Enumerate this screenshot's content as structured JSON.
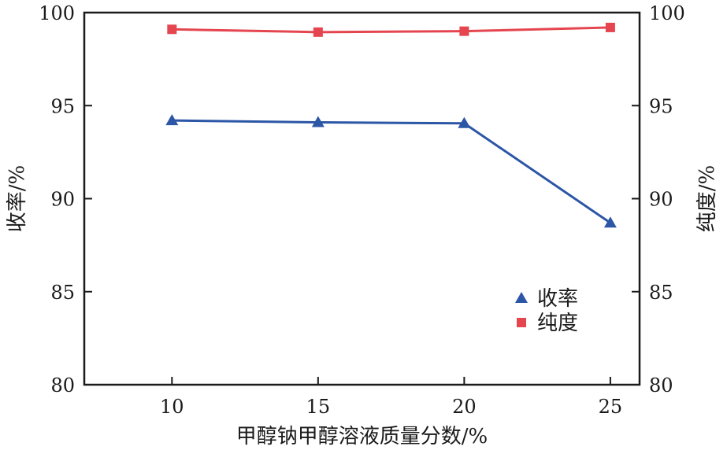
{
  "chart_data": {
    "type": "line",
    "x": [
      10,
      15,
      20,
      25
    ],
    "xticks": [
      10,
      15,
      20,
      25
    ],
    "xlabel": "甲醇钠甲醇溶液质量分数/%",
    "ylabel_left": "收率/%",
    "ylabel_right": "纯度/%",
    "ylim_left": [
      80,
      100
    ],
    "ylim_right": [
      80,
      100
    ],
    "yticks": [
      80,
      85,
      90,
      95,
      100
    ],
    "grid": false,
    "legend_position": "lower-right",
    "series": [
      {
        "name": "收率",
        "axis": "left",
        "marker": "triangle",
        "color": "#2c56a6",
        "values": [
          94.2,
          94.1,
          94.05,
          88.7
        ]
      },
      {
        "name": "纯度",
        "axis": "right",
        "marker": "square",
        "color": "#e5454f",
        "values": [
          99.1,
          98.95,
          99.0,
          99.2
        ]
      }
    ]
  }
}
